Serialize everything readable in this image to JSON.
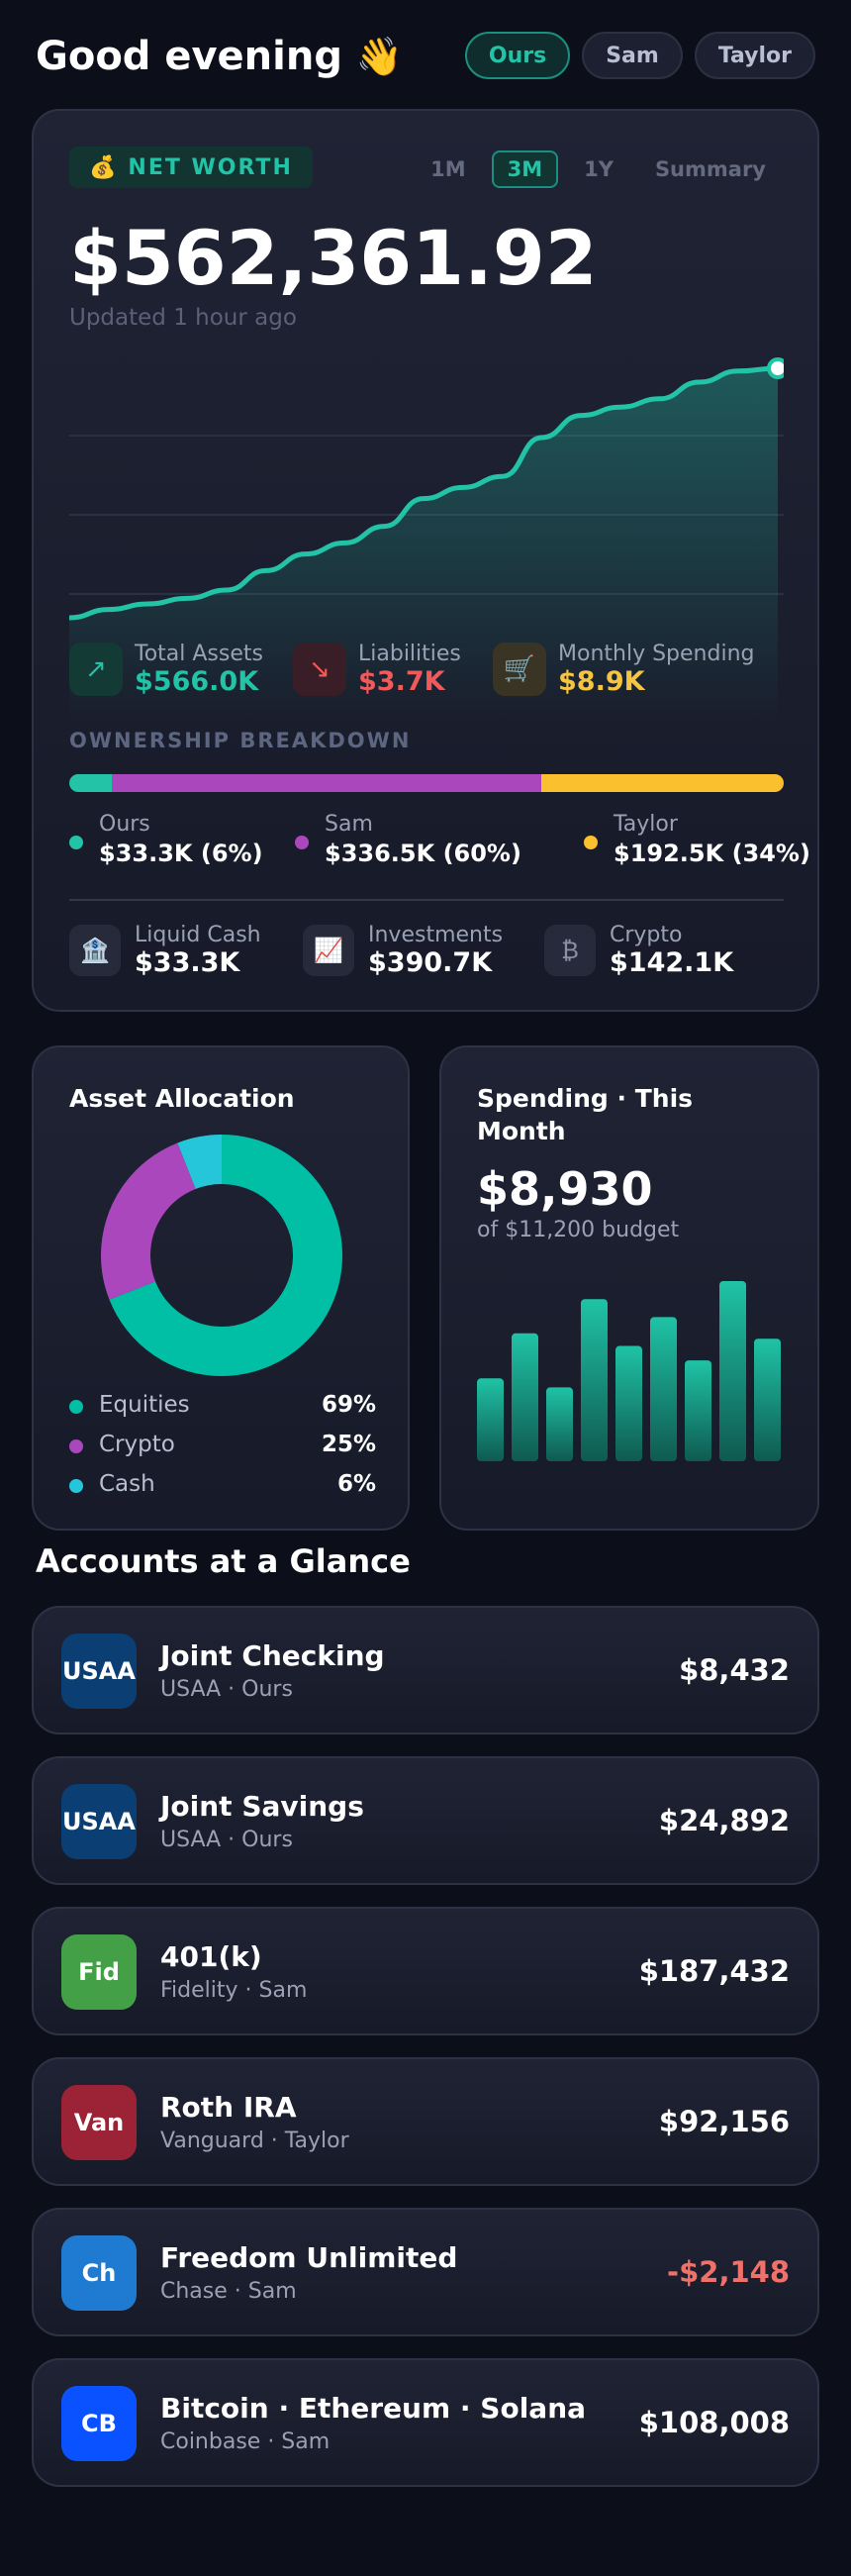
{
  "header": {
    "greeting": "Good evening",
    "wave": "👋",
    "pills": [
      {
        "label": "Ours",
        "active": true
      },
      {
        "label": "Sam",
        "active": false
      },
      {
        "label": "Taylor",
        "active": false
      }
    ]
  },
  "net_worth": {
    "badge_icon": "money-bag-icon",
    "badge_emoji": "💰",
    "badge_label": "NET WORTH",
    "ranges": [
      "1M",
      "3M",
      "1Y",
      "Summary"
    ],
    "active_range": "3M",
    "value": "$562,361.92",
    "updated": "Updated 1 hour ago",
    "accent": "#22c3a6"
  },
  "chart_data": {
    "type": "area",
    "title": "",
    "xlabel": "",
    "ylabel": "",
    "ylim": [
      0,
      100
    ],
    "values": [
      10,
      13,
      15,
      17,
      20,
      27,
      33,
      37,
      43,
      53,
      57,
      61,
      75,
      83,
      86,
      89,
      95,
      99,
      100
    ],
    "grid": true,
    "color": "#22c3a6"
  },
  "stats": {
    "total_assets": {
      "icon": "arrow-up-right-icon",
      "glyph": "↗",
      "label": "Total Assets",
      "value": "$566.0K",
      "color": "#22c3a6"
    },
    "liabilities": {
      "icon": "arrow-down-right-icon",
      "glyph": "↘",
      "label": "Liabilities",
      "value": "$3.7K",
      "color": "#f05a5a"
    },
    "monthly_spending": {
      "icon": "cart-icon",
      "glyph": "🛒",
      "label": "Monthly Spending",
      "value": "$8.9K",
      "color": "#f5c542"
    }
  },
  "ownership": {
    "title": "OWNERSHIP BREAKDOWN",
    "segments": [
      {
        "name": "Ours",
        "value": "$33.3K (6%)",
        "share": 0.06,
        "color": "#22c3a6"
      },
      {
        "name": "Sam",
        "value": "$336.5K (60%)",
        "share": 0.6,
        "color": "#ab47bc"
      },
      {
        "name": "Taylor",
        "value": "$192.5K (34%)",
        "share": 0.34,
        "color": "#fbc02d"
      }
    ]
  },
  "account_types": [
    {
      "icon": "bank-icon",
      "glyph": "🏦",
      "label": "Liquid Cash",
      "value": "$33.3K"
    },
    {
      "icon": "chart-up-icon",
      "glyph": "📈",
      "label": "Investments",
      "value": "$390.7K"
    },
    {
      "icon": "bitcoin-icon",
      "glyph": "₿",
      "label": "Crypto",
      "value": "$142.1K"
    }
  ],
  "allocation": {
    "title": "Asset Allocation",
    "items": [
      {
        "name": "Equities",
        "pct": "69%",
        "share": 0.69,
        "color": "#00bfa5"
      },
      {
        "name": "Crypto",
        "pct": "25%",
        "share": 0.25,
        "color": "#ab47bc"
      },
      {
        "name": "Cash",
        "pct": "6%",
        "share": 0.06,
        "color": "#26c6da"
      }
    ]
  },
  "spending": {
    "title": "Spending · This Month",
    "value": "$8,930",
    "budget": "of $11,200 budget",
    "bars": [
      0.46,
      0.71,
      0.41,
      0.9,
      0.64,
      0.8,
      0.56,
      1.0,
      0.68
    ]
  },
  "accounts_section": {
    "title": "Accounts at a Glance",
    "items": [
      {
        "logo": "USAA",
        "logo_color": "#0b3e73",
        "name": "Joint Checking",
        "sub": "USAA · Ours",
        "amount": "$8,432",
        "negative": false
      },
      {
        "logo": "USAA",
        "logo_color": "#0b3e73",
        "name": "Joint Savings",
        "sub": "USAA · Ours",
        "amount": "$24,892",
        "negative": false
      },
      {
        "logo": "Fid",
        "logo_color": "#43a047",
        "name": "401(k)",
        "sub": "Fidelity · Sam",
        "amount": "$187,432",
        "negative": false
      },
      {
        "logo": "Van",
        "logo_color": "#9b2335",
        "name": "Roth IRA",
        "sub": "Vanguard · Taylor",
        "amount": "$92,156",
        "negative": false
      },
      {
        "logo": "Ch",
        "logo_color": "#1f7bd1",
        "name": "Freedom Unlimited",
        "sub": "Chase · Sam",
        "amount": "-$2,148",
        "negative": true
      },
      {
        "logo": "CB",
        "logo_color": "#0a52ff",
        "name": "Bitcoin · Ethereum · Solana",
        "sub": "Coinbase · Sam",
        "amount": "$108,008",
        "negative": false
      }
    ]
  }
}
